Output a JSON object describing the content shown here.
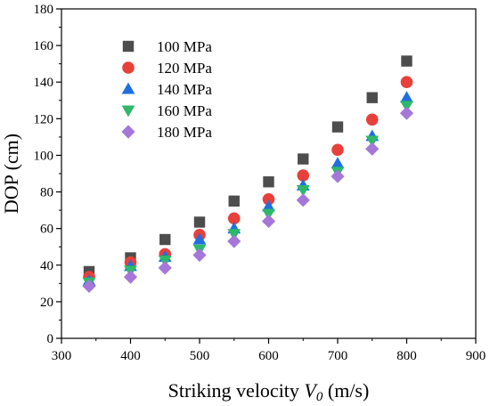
{
  "chart_data": {
    "type": "scatter",
    "xlabel_prefix": "Striking velocity ",
    "xlabel_var": "V",
    "xlabel_sub": "0",
    "xlabel_suffix": " (m/s)",
    "ylabel": "DOP (cm)",
    "xlim": [
      300,
      900
    ],
    "ylim": [
      0,
      180
    ],
    "xticks": [
      300,
      400,
      500,
      600,
      700,
      800,
      900
    ],
    "yticks": [
      0,
      20,
      40,
      60,
      80,
      100,
      120,
      140,
      160,
      180
    ],
    "legend_position": "top-left",
    "grid": false,
    "x": [
      340,
      400,
      450,
      500,
      550,
      600,
      650,
      700,
      750,
      800
    ],
    "series": [
      {
        "name": "100 MPa",
        "marker": "square",
        "color": "#4d4d4d",
        "values": [
          36.5,
          44,
          54,
          63.5,
          75,
          85.5,
          98,
          115.5,
          131.5,
          151.5
        ]
      },
      {
        "name": "120 MPa",
        "marker": "circle",
        "color": "#e8403a",
        "values": [
          33.5,
          41.5,
          46,
          56.5,
          65.5,
          76,
          89,
          103,
          119.5,
          140
        ]
      },
      {
        "name": "140 MPa",
        "marker": "triangle-up",
        "color": "#1f6fe0",
        "values": [
          31.5,
          39.5,
          44.5,
          54,
          60,
          72,
          83.5,
          95.5,
          110.5,
          131.5
        ]
      },
      {
        "name": "160 MPa",
        "marker": "triangle-down",
        "color": "#2eb86a",
        "values": [
          30.5,
          37,
          42.5,
          48.5,
          57,
          68,
          81,
          91,
          108,
          127
        ]
      },
      {
        "name": "180 MPa",
        "marker": "diamond",
        "color": "#a477d8",
        "values": [
          28.5,
          33.5,
          38.5,
          45.5,
          53,
          64,
          75.5,
          88.5,
          103.5,
          123
        ]
      }
    ]
  }
}
